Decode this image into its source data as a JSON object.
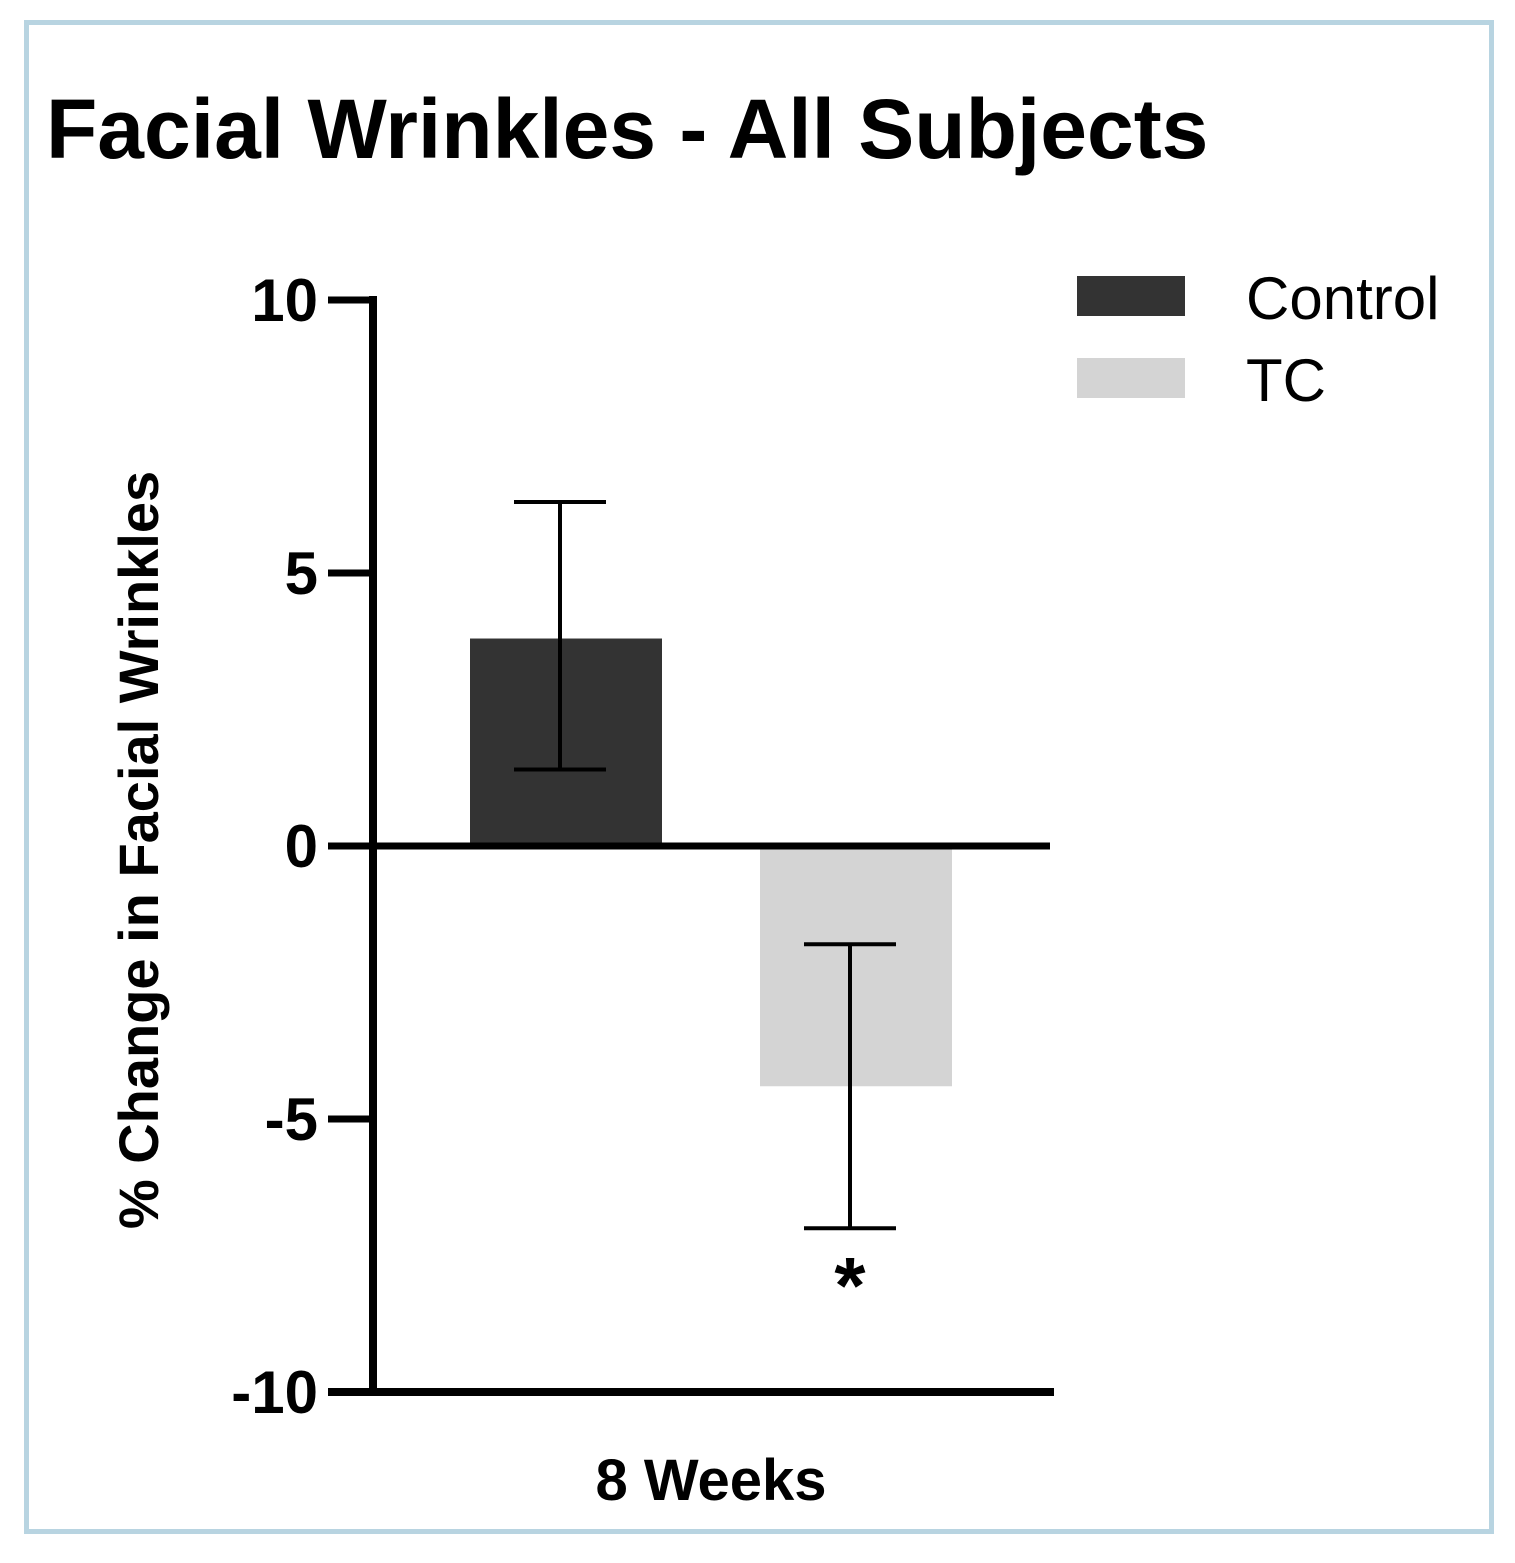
{
  "chart_data": {
    "type": "bar",
    "title": "Facial Wrinkles - All Subjects",
    "xlabel": "",
    "ylabel": "% Change in Facial Wrinkles",
    "categories": [
      "8 Weeks"
    ],
    "series": [
      {
        "name": "Control",
        "values": [
          3.8
        ],
        "error_upper": [
          6.3
        ],
        "error_lower": [
          1.4
        ],
        "color": "#333333"
      },
      {
        "name": "TC",
        "values": [
          -4.4
        ],
        "error_upper": [
          -1.8
        ],
        "error_lower": [
          -7.0
        ],
        "color": "#d4d4d4"
      }
    ],
    "ylim": [
      -10,
      10
    ],
    "yticks": [
      10,
      5,
      0,
      -5,
      -10
    ],
    "ytick_labels": [
      "10",
      "5",
      "0",
      "-5",
      "-10"
    ],
    "grid": false,
    "legend_position": "top-right",
    "annotations": [
      {
        "series": "TC",
        "category": "8 Weeks",
        "text": "*"
      }
    ]
  }
}
